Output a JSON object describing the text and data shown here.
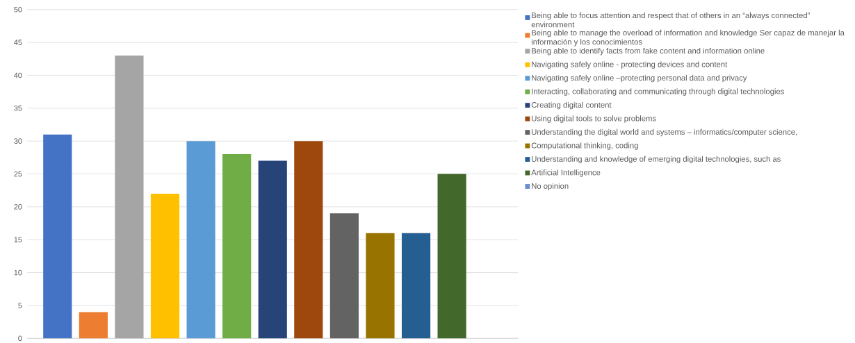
{
  "chart_data": {
    "type": "bar",
    "categories": [
      null
    ],
    "series": [
      {
        "name": "Being able to focus attention and respect that of others in an “always connected” environment",
        "color": "#4472c4",
        "values": [
          31
        ]
      },
      {
        "name": "Being able to manage the overload of information and knowledge Ser capaz de manejar la información y los conocimientos",
        "color": "#ed7d31",
        "values": [
          4
        ]
      },
      {
        "name": "Being able to identify facts from fake content and information online",
        "color": "#a5a5a5",
        "values": [
          43
        ]
      },
      {
        "name": "Navigating safely online - protecting devices and content",
        "color": "#ffc000",
        "values": [
          22
        ]
      },
      {
        "name": "Navigating safely online –protecting personal data and privacy",
        "color": "#5b9bd5",
        "values": [
          30
        ]
      },
      {
        "name": "Interacting, collaborating and communicating through digital technologies",
        "color": "#70ad47",
        "values": [
          28
        ]
      },
      {
        "name": "Creating digital content",
        "color": "#264478",
        "values": [
          27
        ]
      },
      {
        "name": "Using digital tools to solve problems",
        "color": "#9e480e",
        "values": [
          30
        ]
      },
      {
        "name": "Understanding the digital world and systems – informatics/computer science,",
        "color": "#636363",
        "values": [
          19
        ]
      },
      {
        "name": "Computational thinking, coding",
        "color": "#997300",
        "values": [
          16
        ]
      },
      {
        "name": "Understanding and knowledge of emerging digital technologies, such as",
        "color": "#255e91",
        "values": [
          16
        ]
      },
      {
        "name": "Artificial Intelligence",
        "color": "#43682b",
        "values": [
          25
        ]
      },
      {
        "name": "No opinion",
        "color": "#698ed0",
        "values": [
          0
        ]
      }
    ],
    "ylim": [
      0,
      50
    ],
    "yticks": [
      0,
      5,
      10,
      15,
      20,
      25,
      30,
      35,
      40,
      45,
      50
    ],
    "grid": "y",
    "legend": "right"
  }
}
